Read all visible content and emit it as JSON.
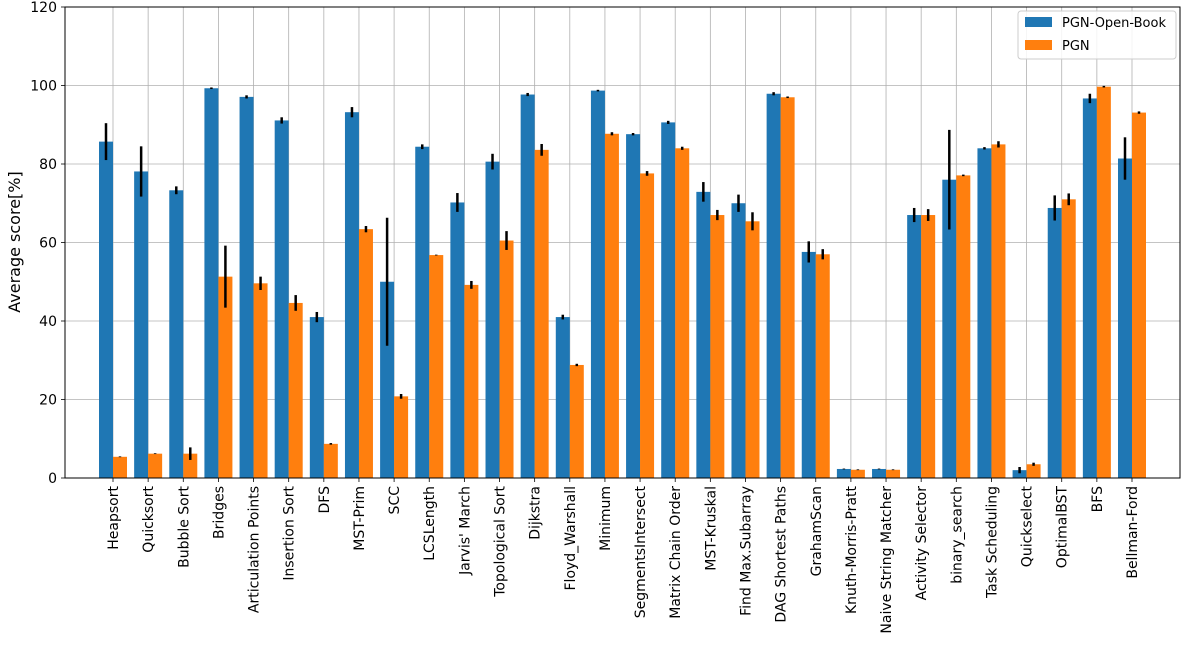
{
  "chart_data": {
    "type": "bar",
    "ylabel": "Average score[%]",
    "ylim": [
      0,
      120
    ],
    "yticks": [
      0,
      20,
      40,
      60,
      80,
      100,
      120
    ],
    "grid": true,
    "legend_position": "top-right",
    "categories": [
      "Heapsort",
      "Quicksort",
      "Bubble Sort",
      "Bridges",
      "Articulation Points",
      "Insertion Sort",
      "DFS",
      "MST-Prim",
      "SCC",
      "LCSLength",
      "Jarvis' March",
      "Topological Sort",
      "Dijkstra",
      "Floyd_Warshall",
      "Minimum",
      "SegmentsIntersect",
      "Matrix Chain Order",
      "MST-Kruskal",
      "Find Max.Subarray",
      "DAG Shortest Paths",
      "GrahamScan",
      "Knuth-Morris-Pratt",
      "Naive String Matcher",
      "Activity Selector",
      "binary_search",
      "Task Scheduling",
      "Quickselect",
      "OptimalBST",
      "BFS",
      "Bellman-Ford"
    ],
    "series": [
      {
        "name": "PGN-Open-Book",
        "color": "#1f77b4",
        "values": [
          85.7,
          78.1,
          73.3,
          99.3,
          97.1,
          91.1,
          41.0,
          93.2,
          50.0,
          84.4,
          70.2,
          80.6,
          97.7,
          41.0,
          98.7,
          87.6,
          90.6,
          72.9,
          70.0,
          97.9,
          57.6,
          2.3,
          2.3,
          67.0,
          76.0,
          84.0,
          2.0,
          68.8,
          96.7,
          81.4
        ],
        "errors": [
          4.7,
          6.4,
          1.0,
          0.2,
          0.4,
          0.8,
          1.3,
          1.3,
          16.3,
          0.6,
          2.4,
          2.0,
          0.4,
          0.6,
          0.2,
          0.3,
          0.4,
          2.5,
          2.2,
          0.4,
          2.7,
          0.1,
          0.1,
          1.8,
          12.7,
          0.3,
          0.8,
          3.2,
          1.2,
          5.4
        ]
      },
      {
        "name": "PGN",
        "color": "#ff7f0e",
        "values": [
          5.4,
          6.2,
          6.2,
          51.3,
          49.6,
          44.6,
          8.7,
          63.4,
          20.8,
          56.8,
          49.2,
          60.5,
          83.6,
          28.8,
          87.7,
          77.6,
          84.0,
          67.0,
          65.4,
          97.0,
          57.0,
          2.1,
          2.1,
          67.0,
          77.1,
          85.0,
          3.5,
          71.0,
          99.7,
          93.1
        ],
        "errors": [
          0.1,
          0.1,
          1.6,
          7.9,
          1.7,
          2.0,
          0.2,
          0.8,
          0.6,
          0.1,
          1.0,
          2.4,
          1.5,
          0.3,
          0.4,
          0.6,
          0.4,
          1.3,
          2.3,
          0.2,
          1.3,
          0.1,
          0.1,
          1.5,
          0.2,
          0.8,
          0.4,
          1.5,
          0.2,
          0.3
        ]
      }
    ]
  },
  "legend": {
    "items": [
      {
        "label": "PGN-Open-Book",
        "color": "#1f77b4"
      },
      {
        "label": "PGN",
        "color": "#ff7f0e"
      }
    ]
  }
}
